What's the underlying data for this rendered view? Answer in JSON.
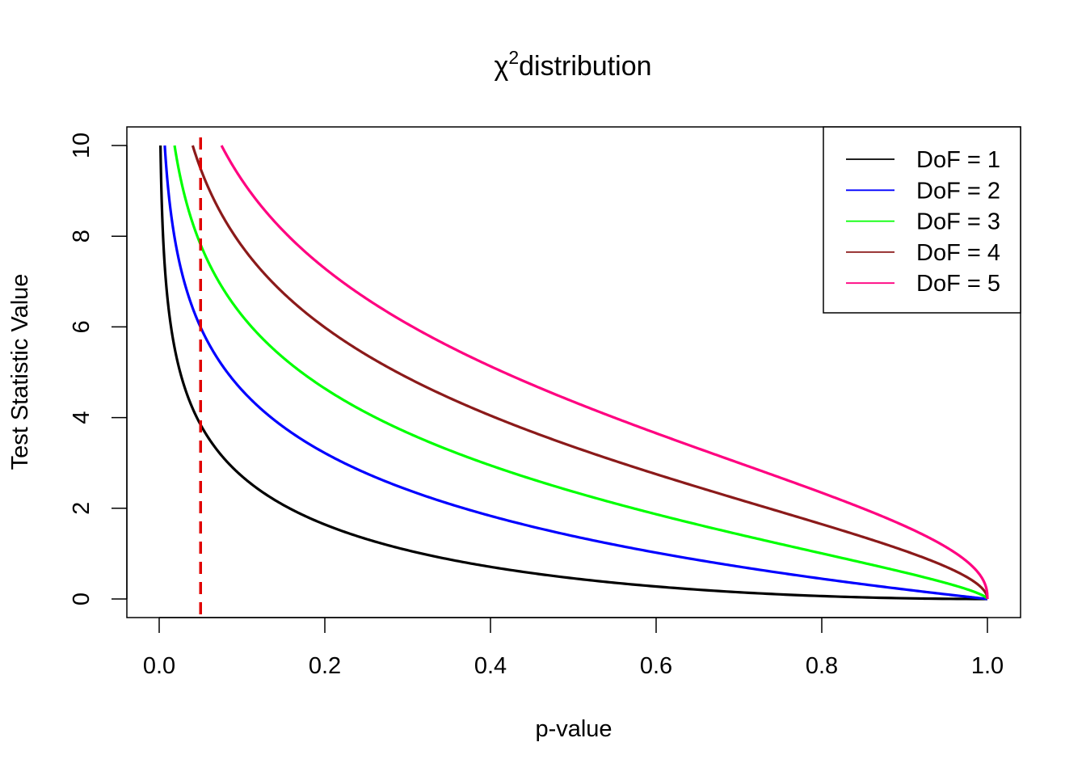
{
  "chart_data": {
    "type": "line",
    "title_symbol": "χ",
    "title_superscript": "2",
    "title_text": "distribution",
    "xlabel": "p-value",
    "ylabel": "Test Statistic Value",
    "xlim": [
      0.0,
      1.0
    ],
    "ylim": [
      0,
      10
    ],
    "xticks": [
      0.0,
      0.2,
      0.4,
      0.6,
      0.8,
      1.0
    ],
    "xtick_labels": [
      "0.0",
      "0.2",
      "0.4",
      "0.6",
      "0.8",
      "1.0"
    ],
    "yticks": [
      0,
      2,
      4,
      6,
      8,
      10
    ],
    "ytick_labels": [
      "0",
      "2",
      "4",
      "6",
      "8",
      "10"
    ],
    "grid": false,
    "legend_position": "top-right",
    "series": [
      {
        "name": "DoF = 1",
        "color": "#000000",
        "dof": 1
      },
      {
        "name": "DoF = 2",
        "color": "#0000ff",
        "dof": 2
      },
      {
        "name": "DoF = 3",
        "color": "#00ff00",
        "dof": 3
      },
      {
        "name": "DoF = 4",
        "color": "#8b1a1a",
        "dof": 4
      },
      {
        "name": "DoF = 5",
        "color": "#ff0080",
        "dof": 5
      }
    ],
    "reference_line": {
      "x": 0.05,
      "color": "#e00000",
      "style": "dashed"
    }
  }
}
